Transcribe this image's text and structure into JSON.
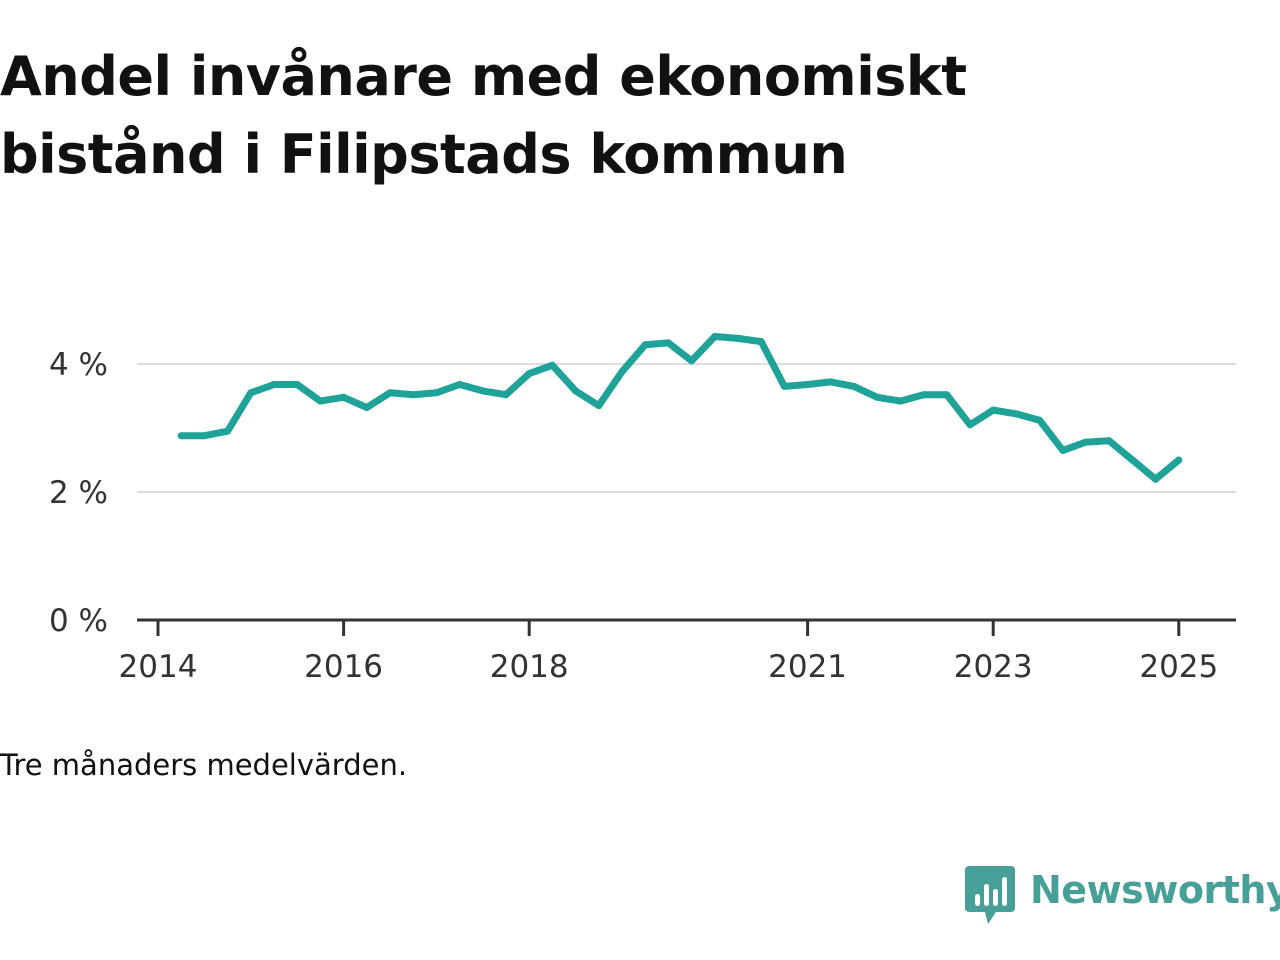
{
  "header": {
    "title": "Andel invånare med ekonomiskt bistånd i Filipstads kommun"
  },
  "footnote": "Tre månaders medelvärden.",
  "brand": {
    "name": "Newsworthy",
    "color": "#46a097",
    "icon": "newsworthy-logo-icon"
  },
  "colors": {
    "line": "#1fa399",
    "grid": "#dddddd",
    "axis": "#333333"
  },
  "chart_data": {
    "type": "line",
    "title": "Andel invånare med ekonomiskt bistånd i Filipstads kommun",
    "xlabel": "",
    "ylabel": "",
    "y_unit": "%",
    "ylim": [
      0,
      4.5
    ],
    "y_ticks": [
      {
        "value": 0,
        "label": "0 %"
      },
      {
        "value": 2,
        "label": "2 %"
      },
      {
        "value": 4,
        "label": "4 %"
      }
    ],
    "x_range": [
      "2014-01-01",
      "2026-01-01"
    ],
    "x_ticks": [
      {
        "value": "2014-01-01",
        "label": "2014"
      },
      {
        "value": "2016-01-01",
        "label": "2016"
      },
      {
        "value": "2018-01-01",
        "label": "2018"
      },
      {
        "value": "2021-01-01",
        "label": "2021"
      },
      {
        "value": "2023-01-01",
        "label": "2023"
      },
      {
        "value": "2025-01-01",
        "label": "2025"
      }
    ],
    "grid": {
      "horizontal": true,
      "vertical": false
    },
    "legend": "none",
    "series": [
      {
        "x": [
          "2014-04-01",
          "2014-07-01",
          "2014-10-01",
          "2015-01-01",
          "2015-04-01",
          "2015-07-01",
          "2015-10-01",
          "2016-01-01",
          "2016-04-01",
          "2016-07-01",
          "2016-10-01",
          "2017-01-01",
          "2017-04-01",
          "2017-07-01",
          "2017-10-01",
          "2018-01-01",
          "2018-04-01",
          "2018-07-01",
          "2018-10-01",
          "2019-01-01",
          "2019-04-01",
          "2019-07-01",
          "2019-10-01",
          "2020-01-01",
          "2020-04-01",
          "2020-07-01",
          "2020-10-01",
          "2021-01-01",
          "2021-04-01",
          "2021-07-01",
          "2021-10-01",
          "2022-01-01",
          "2022-04-01",
          "2022-07-01",
          "2022-10-01",
          "2023-01-01",
          "2023-04-01",
          "2023-07-01",
          "2023-10-01",
          "2024-01-01",
          "2024-04-01",
          "2024-07-01",
          "2024-10-01",
          "2025-01-01"
        ],
        "values": [
          2.88,
          2.88,
          2.95,
          3.55,
          3.68,
          3.68,
          3.42,
          3.48,
          3.32,
          3.55,
          3.52,
          3.55,
          3.68,
          3.58,
          3.52,
          3.85,
          3.98,
          3.58,
          3.35,
          3.88,
          4.3,
          4.33,
          4.05,
          4.43,
          4.4,
          4.35,
          3.65,
          3.68,
          3.72,
          3.65,
          3.48,
          3.42,
          3.52,
          3.52,
          3.05,
          3.28,
          3.22,
          3.12,
          2.65,
          2.78,
          2.8,
          2.5,
          2.2,
          2.5
        ]
      }
    ]
  }
}
